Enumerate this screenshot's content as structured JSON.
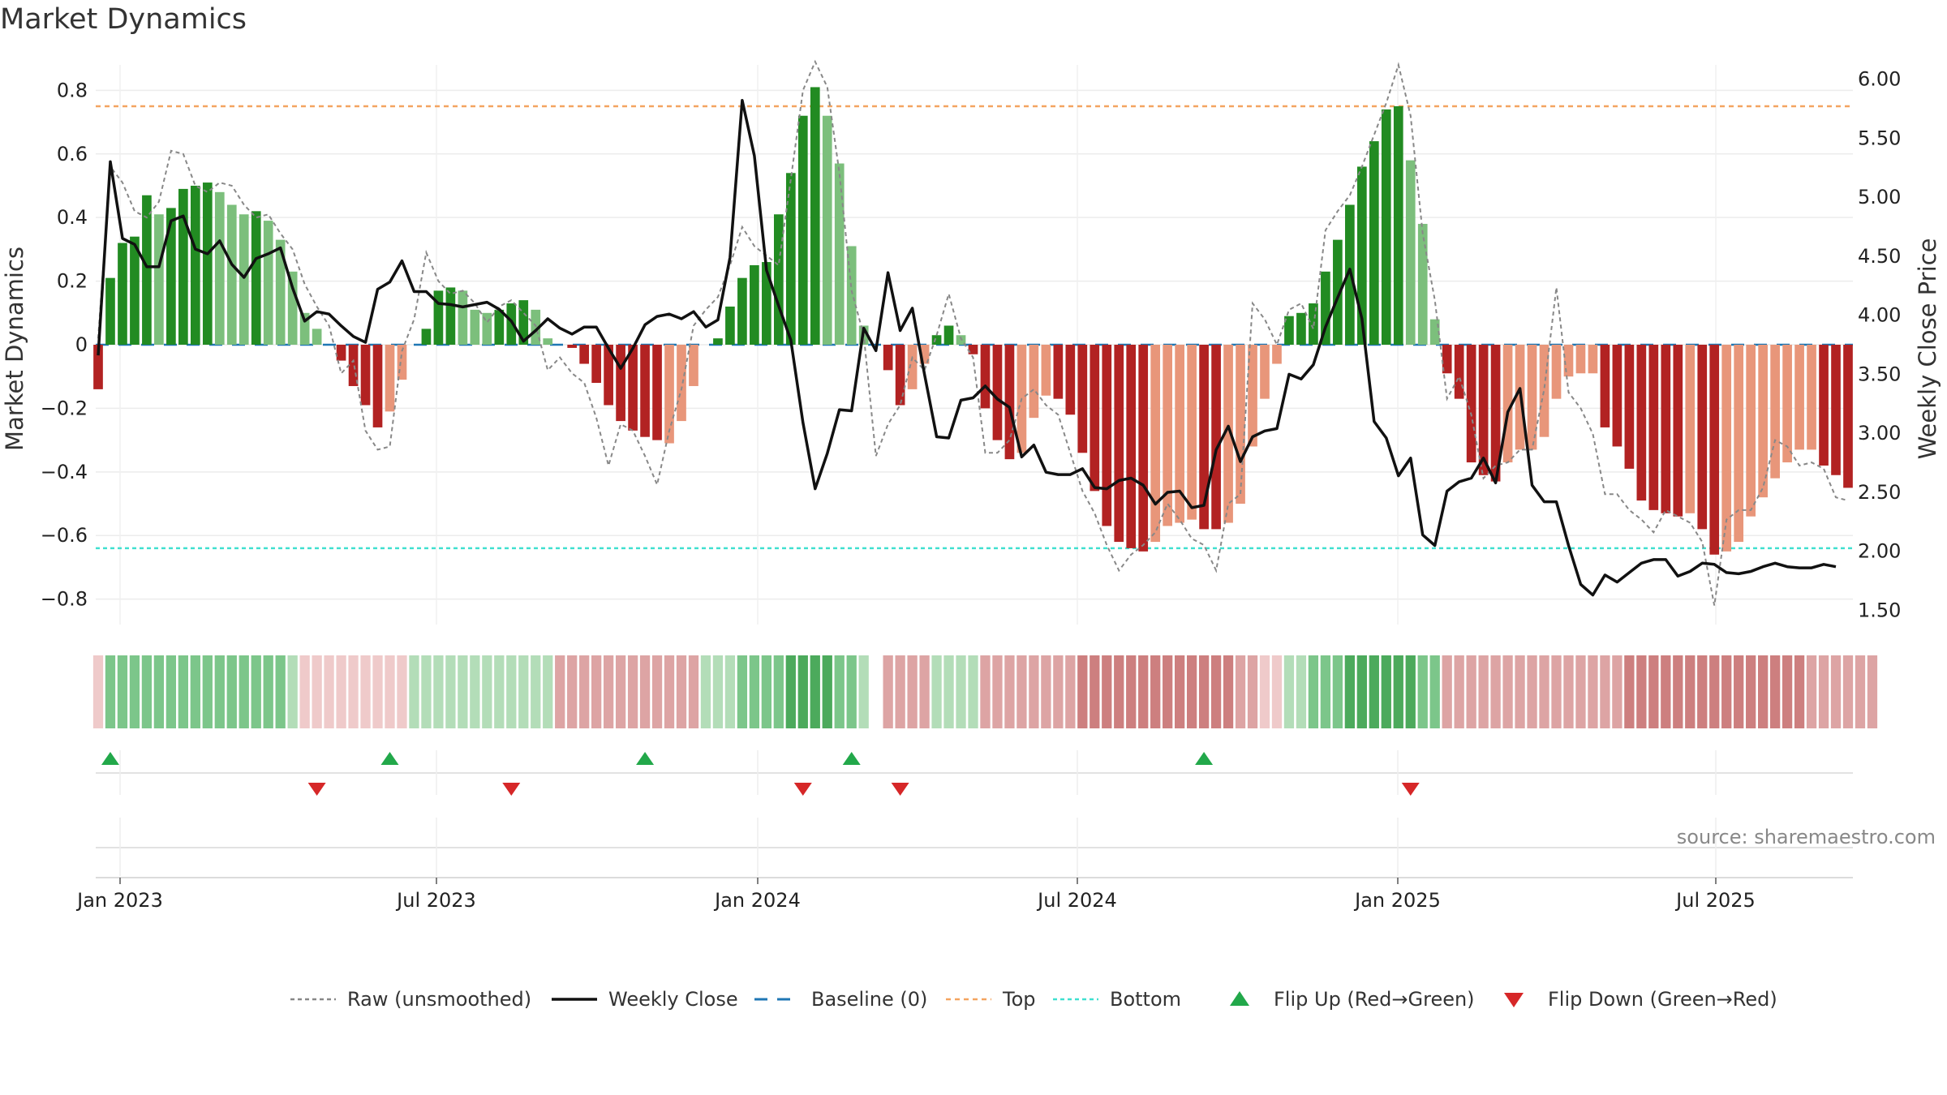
{
  "title": "Market Dynamics",
  "source": "source: sharemaestro.com",
  "colors": {
    "green_strong": "#228B22",
    "green_light": "#7CBF7C",
    "red_strong": "#B22222",
    "red_light": "#E8967A",
    "close_line": "#111111",
    "raw_line": "#888888",
    "baseline": "#1f77b4",
    "top": "#f4a460",
    "bottom": "#40e0d0",
    "flip_up": "#22a84a",
    "flip_down": "#d62728"
  },
  "chart_data": {
    "type": "bar",
    "title": "Market Dynamics",
    "ylabel_left": "Market Dynamics",
    "ylabel_right": "Weekly Close Price",
    "ylim_left": [
      -0.88,
      0.88
    ],
    "ylim_right": [
      1.38,
      6.12
    ],
    "yticks_left": [
      "0.8",
      "0.6",
      "0.4",
      "0.2",
      "0",
      "−0.2",
      "−0.4",
      "−0.6",
      "−0.8"
    ],
    "yticks_left_values": [
      0.8,
      0.6,
      0.4,
      0.2,
      0,
      -0.2,
      -0.4,
      -0.6,
      -0.8
    ],
    "yticks_right": [
      "6.00",
      "5.50",
      "5.00",
      "4.50",
      "4.00",
      "3.50",
      "3.00",
      "2.50",
      "2.00",
      "1.50"
    ],
    "yticks_right_values": [
      6.0,
      5.5,
      5.0,
      4.5,
      4.0,
      3.5,
      3.0,
      2.5,
      2.0,
      1.5
    ],
    "x_ticks": [
      "Jan 2023",
      "Jul 2023",
      "Jan 2024",
      "Jul 2024",
      "Jan 2025",
      "Jul 2025"
    ],
    "top_level": 0.75,
    "bottom_level": -0.64,
    "baseline": 0,
    "momentum": [
      -0.14,
      0.21,
      0.32,
      0.34,
      0.47,
      0.41,
      0.43,
      0.49,
      0.5,
      0.51,
      0.48,
      0.44,
      0.41,
      0.42,
      0.39,
      0.33,
      0.23,
      0.1,
      0.05,
      0.0,
      -0.05,
      -0.13,
      -0.19,
      -0.26,
      -0.21,
      -0.11,
      0.0,
      0.05,
      0.17,
      0.18,
      0.17,
      0.11,
      0.1,
      0.11,
      0.13,
      0.14,
      0.11,
      0.02,
      0.0,
      -0.01,
      -0.06,
      -0.12,
      -0.19,
      -0.24,
      -0.27,
      -0.29,
      -0.3,
      -0.31,
      -0.24,
      -0.13,
      0.0,
      0.02,
      0.12,
      0.21,
      0.25,
      0.26,
      0.41,
      0.54,
      0.72,
      0.81,
      0.72,
      0.57,
      0.31,
      0.06,
      null,
      -0.08,
      -0.19,
      -0.14,
      -0.06,
      0.03,
      0.06,
      0.03,
      -0.03,
      -0.2,
      -0.3,
      -0.36,
      -0.34,
      -0.23,
      -0.16,
      -0.17,
      -0.22,
      -0.34,
      -0.46,
      -0.57,
      -0.62,
      -0.64,
      -0.65,
      -0.62,
      -0.57,
      -0.56,
      -0.55,
      -0.58,
      -0.58,
      -0.56,
      -0.5,
      -0.32,
      -0.17,
      -0.06,
      0.09,
      0.1,
      0.13,
      0.23,
      0.33,
      0.44,
      0.56,
      0.64,
      0.74,
      0.75,
      0.58,
      0.38,
      0.08,
      -0.09,
      -0.17,
      -0.37,
      -0.41,
      -0.43,
      -0.37,
      -0.33,
      -0.33,
      -0.29,
      -0.17,
      -0.1,
      -0.09,
      -0.09,
      -0.26,
      -0.32,
      -0.39,
      -0.49,
      -0.52,
      -0.53,
      -0.54,
      -0.53,
      -0.58,
      -0.66,
      -0.65,
      -0.62,
      -0.54,
      -0.48,
      -0.42,
      -0.37,
      -0.33,
      -0.33,
      -0.38,
      -0.41,
      -0.45
    ],
    "bar_strength": [
      "s",
      "s",
      "s",
      "s",
      "s",
      "w",
      "s",
      "s",
      "s",
      "s",
      "w",
      "w",
      "w",
      "s",
      "w",
      "w",
      "w",
      "w",
      "w",
      "w",
      "s",
      "s",
      "s",
      "s",
      "w",
      "w",
      "w",
      "s",
      "s",
      "s",
      "w",
      "w",
      "w",
      "s",
      "s",
      "s",
      "w",
      "w",
      "w",
      "s",
      "s",
      "s",
      "s",
      "s",
      "s",
      "s",
      "s",
      "w",
      "w",
      "w",
      "w",
      "s",
      "s",
      "s",
      "s",
      "s",
      "s",
      "s",
      "s",
      "s",
      "w",
      "w",
      "w",
      "w",
      null,
      "s",
      "s",
      "w",
      "w",
      "s",
      "s",
      "w",
      "s",
      "s",
      "s",
      "s",
      "w",
      "w",
      "w",
      "s",
      "s",
      "s",
      "s",
      "s",
      "s",
      "s",
      "s",
      "w",
      "w",
      "w",
      "w",
      "s",
      "s",
      "w",
      "w",
      "w",
      "w",
      "w",
      "s",
      "s",
      "s",
      "s",
      "s",
      "s",
      "s",
      "s",
      "s",
      "s",
      "w",
      "w",
      "w",
      "s",
      "s",
      "s",
      "s",
      "s",
      "w",
      "w",
      "w",
      "w",
      "w",
      "w",
      "w",
      "w",
      "s",
      "s",
      "s",
      "s",
      "s",
      "s",
      "s",
      "w",
      "s",
      "s",
      "w",
      "w",
      "w",
      "w",
      "w",
      "w",
      "w",
      "w",
      "s",
      "s",
      "s"
    ],
    "raw_momentum": [
      0.02,
      0.56,
      0.51,
      0.42,
      0.4,
      0.45,
      0.61,
      0.6,
      0.5,
      0.48,
      0.51,
      0.5,
      0.44,
      0.4,
      0.41,
      0.35,
      0.3,
      0.19,
      0.12,
      0.06,
      -0.09,
      -0.05,
      -0.27,
      -0.33,
      -0.32,
      -0.02,
      0.08,
      0.29,
      0.2,
      0.16,
      0.17,
      0.13,
      0.07,
      0.12,
      0.14,
      0.1,
      0.06,
      -0.08,
      -0.04,
      -0.09,
      -0.12,
      -0.23,
      -0.38,
      -0.25,
      -0.27,
      -0.35,
      -0.44,
      -0.27,
      -0.14,
      0.06,
      0.11,
      0.15,
      0.25,
      0.37,
      0.31,
      0.28,
      0.25,
      0.52,
      0.8,
      0.89,
      0.81,
      0.54,
      0.17,
      0.03,
      -0.35,
      -0.25,
      -0.19,
      -0.04,
      -0.08,
      0.03,
      0.16,
      0.02,
      -0.04,
      -0.34,
      -0.34,
      -0.3,
      -0.17,
      -0.14,
      -0.19,
      -0.22,
      -0.34,
      -0.46,
      -0.53,
      -0.63,
      -0.71,
      -0.66,
      -0.63,
      -0.59,
      -0.5,
      -0.55,
      -0.61,
      -0.63,
      -0.71,
      -0.5,
      -0.47,
      0.13,
      0.08,
      0.0,
      0.11,
      0.13,
      0.05,
      0.36,
      0.42,
      0.47,
      0.56,
      0.66,
      0.76,
      0.88,
      0.72,
      0.35,
      0.14,
      -0.17,
      -0.1,
      -0.22,
      -0.42,
      -0.38,
      -0.37,
      -0.33,
      -0.33,
      -0.14,
      0.18,
      -0.15,
      -0.2,
      -0.28,
      -0.47,
      -0.47,
      -0.52,
      -0.55,
      -0.59,
      -0.52,
      -0.54,
      -0.56,
      -0.62,
      -0.82,
      -0.55,
      -0.52,
      -0.52,
      -0.45,
      -0.3,
      -0.32,
      -0.38,
      -0.37,
      -0.39,
      -0.48,
      -0.49
    ],
    "weekly_close": [
      3.66,
      5.3,
      4.65,
      4.6,
      4.41,
      4.41,
      4.8,
      4.84,
      4.56,
      4.52,
      4.63,
      4.43,
      4.32,
      4.48,
      4.52,
      4.57,
      4.23,
      3.95,
      4.03,
      4.01,
      3.91,
      3.82,
      3.77,
      4.22,
      4.28,
      4.46,
      4.2,
      4.2,
      4.1,
      4.09,
      4.07,
      4.09,
      4.11,
      4.05,
      3.95,
      3.78,
      3.87,
      3.97,
      3.89,
      3.84,
      3.9,
      3.9,
      3.72,
      3.55,
      3.72,
      3.92,
      3.99,
      4.01,
      3.97,
      4.03,
      3.9,
      3.96,
      4.49,
      5.82,
      5.35,
      4.38,
      4.08,
      3.79,
      3.09,
      2.53,
      2.83,
      3.2,
      3.19,
      3.89,
      3.7,
      4.36,
      3.87,
      4.06,
      3.5,
      2.97,
      2.96,
      3.28,
      3.3,
      3.4,
      3.29,
      3.22,
      2.8,
      2.9,
      2.67,
      2.65,
      2.65,
      2.7,
      2.54,
      2.53,
      2.6,
      2.62,
      2.56,
      2.4,
      2.5,
      2.51,
      2.37,
      2.39,
      2.86,
      3.06,
      2.76,
      2.97,
      3.02,
      3.04,
      3.5,
      3.46,
      3.58,
      3.9,
      4.15,
      4.39,
      3.97,
      3.1,
      2.96,
      2.64,
      2.79,
      2.14,
      2.05,
      2.51,
      2.59,
      2.62,
      2.79,
      2.58,
      3.18,
      3.38,
      2.56,
      2.42,
      2.42,
      2.05,
      1.72,
      1.63,
      1.8,
      1.74,
      1.82,
      1.9,
      1.93,
      1.93,
      1.79,
      1.83,
      1.9,
      1.89,
      1.82,
      1.81,
      1.83,
      1.87,
      1.9,
      1.87,
      1.86,
      1.86,
      1.89,
      1.87
    ],
    "regime_strip": [
      "rl",
      "g",
      "g",
      "g",
      "g",
      "g",
      "g",
      "g",
      "g",
      "g",
      "g",
      "g",
      "g",
      "g",
      "g",
      "g",
      "gl",
      "rl",
      "rl",
      "rl",
      "rl",
      "rl",
      "rl",
      "rl",
      "rl",
      "rl",
      "gl",
      "gl",
      "gl",
      "gl",
      "gl",
      "gl",
      "gl",
      "gl",
      "gl",
      "gl",
      "gl",
      "gl",
      "r",
      "r",
      "r",
      "r",
      "r",
      "r",
      "r",
      "r",
      "r",
      "r",
      "r",
      "r",
      "gl",
      "gl",
      "gl",
      "g",
      "g",
      "g",
      "g",
      "gd",
      "gd",
      "gd",
      "gd",
      "g",
      "g",
      "gl",
      null,
      "r",
      "r",
      "r",
      "r",
      "gl",
      "gl",
      "gl",
      "gl",
      "r",
      "r",
      "r",
      "r",
      "r",
      "r",
      "r",
      "r",
      "rd",
      "rd",
      "rd",
      "rd",
      "rd",
      "rd",
      "rd",
      "rd",
      "rd",
      "rd",
      "rd",
      "rd",
      "rd",
      "r",
      "r",
      "rl",
      "rl",
      "gl",
      "gl",
      "g",
      "g",
      "g",
      "gd",
      "gd",
      "gd",
      "gd",
      "gd",
      "gd",
      "g",
      "g",
      "r",
      "r",
      "r",
      "r",
      "r",
      "r",
      "r",
      "r",
      "r",
      "r",
      "r",
      "r",
      "r",
      "r",
      "r",
      "rd",
      "rd",
      "rd",
      "rd",
      "rd",
      "rd",
      "rd",
      "rd",
      "rd",
      "rd",
      "rd",
      "rd",
      "rd",
      "rd",
      "rd",
      "r",
      "r",
      "r",
      "r",
      "r",
      "r"
    ],
    "flips_up": [
      1,
      24,
      45,
      62,
      91
    ],
    "flips_down": [
      18,
      34,
      58,
      66,
      108
    ],
    "legend": [
      "Raw (unsmoothed)",
      "Weekly Close",
      "Baseline (0)",
      "Top",
      "Bottom",
      "Flip Up (Red→Green)",
      "Flip Down (Green→Red)"
    ]
  }
}
